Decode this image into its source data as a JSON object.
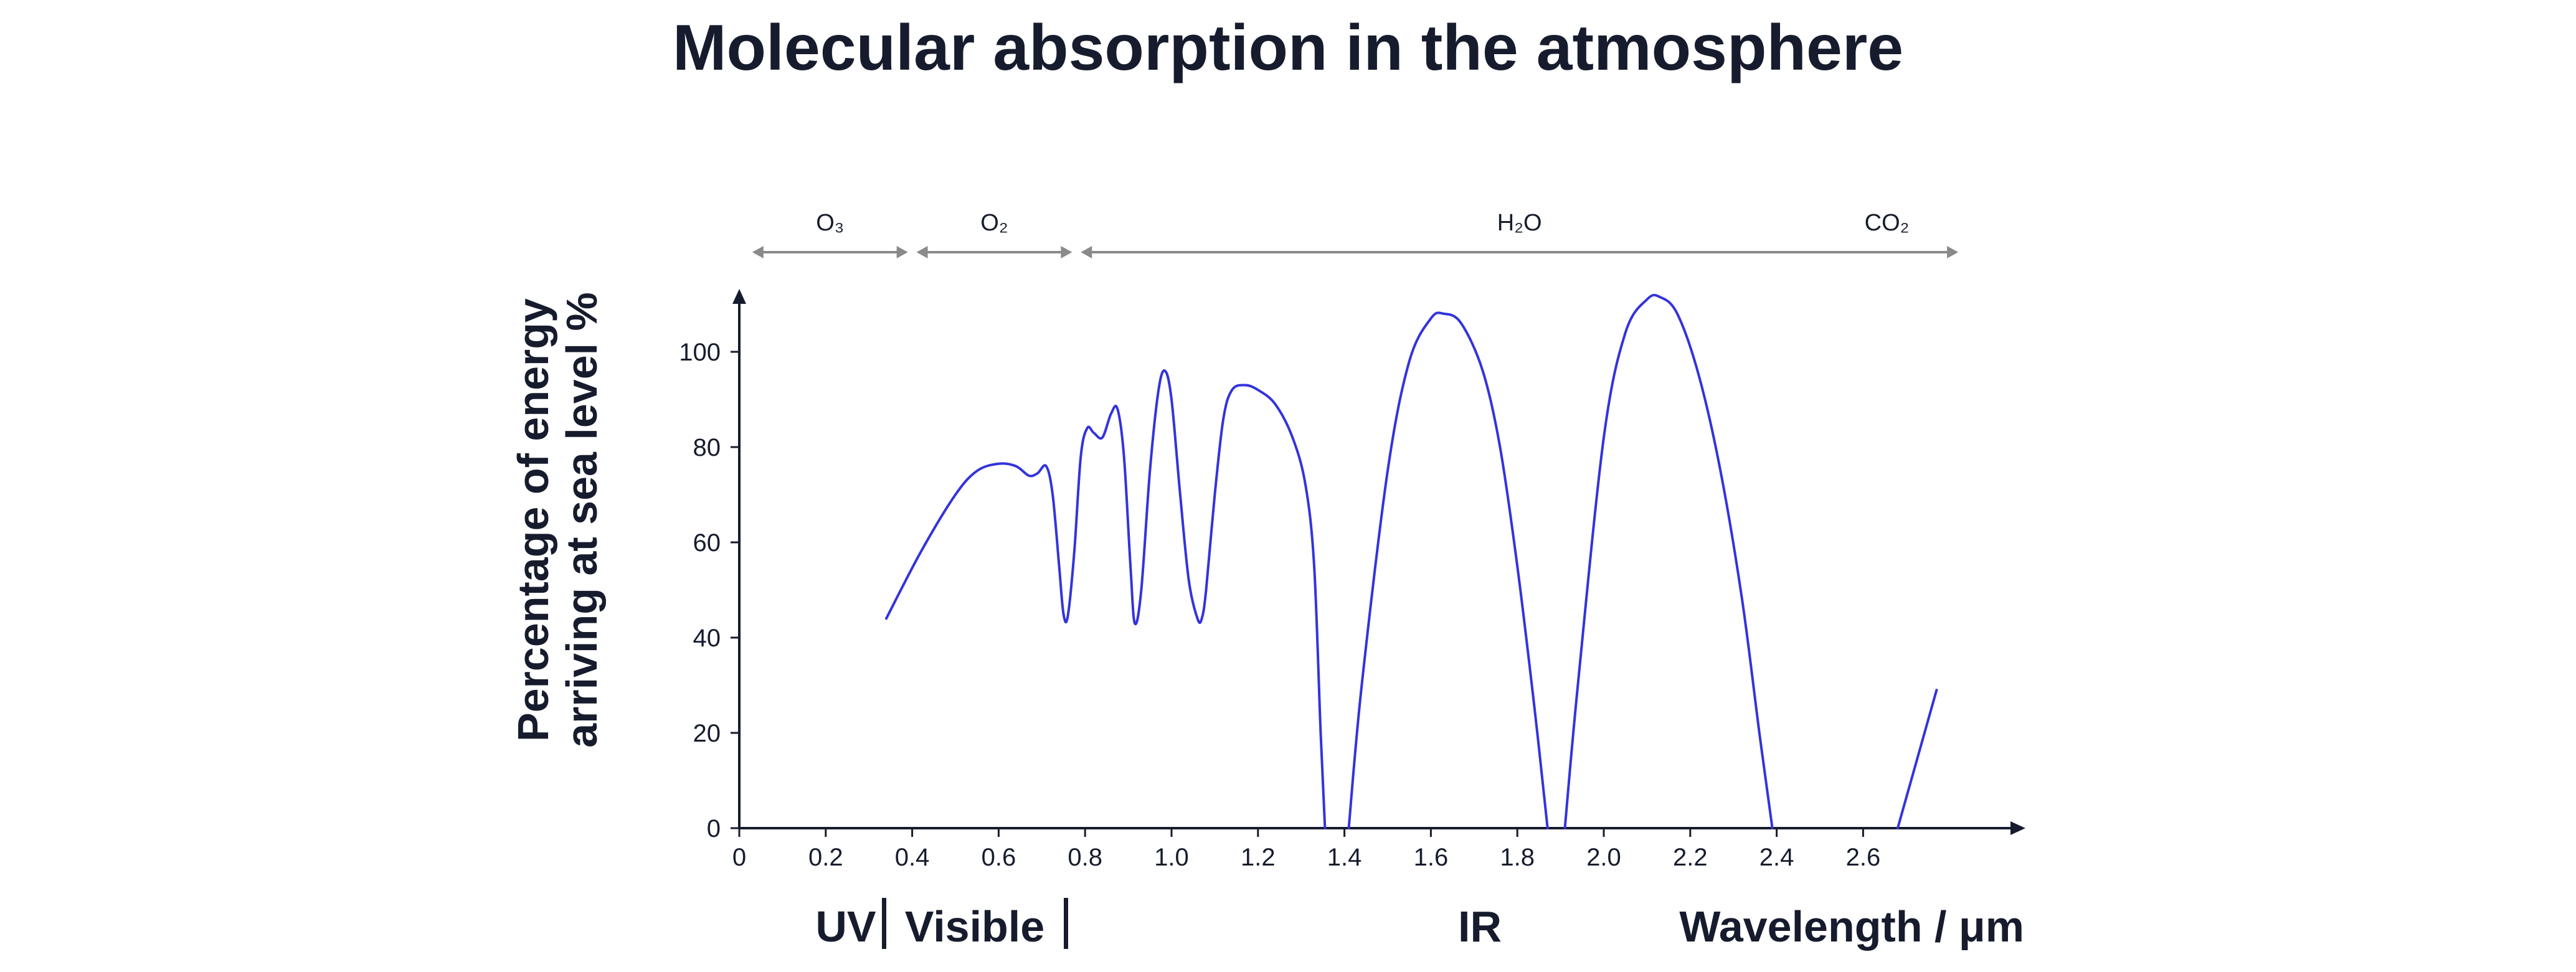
{
  "chart_data": {
    "type": "line",
    "title": "Molecular absorption in the atmosphere",
    "ylabel_line1": "Percentage of energy",
    "ylabel_line2": "arriving at sea level %",
    "xlabel": "Wavelength / μm",
    "xlim": [
      0,
      2.95
    ],
    "ylim": [
      0,
      112
    ],
    "x_ticks": [
      "0",
      "0.2",
      "0.4",
      "0.6",
      "0.8",
      "1.0",
      "1.2",
      "1.4",
      "1.6",
      "1.8",
      "2.0",
      "2.2",
      "2.4",
      "2.6"
    ],
    "y_ticks": [
      "0",
      "20",
      "40",
      "60",
      "80",
      "100"
    ],
    "grid": false,
    "line_color": "#3333dd",
    "regions": {
      "uv": "UV",
      "visible": "Visible",
      "ir": "IR"
    },
    "molecule_bands": [
      {
        "label": "O₃",
        "start": 0.03,
        "end": 0.39
      },
      {
        "label": "O₂",
        "start": 0.41,
        "end": 0.77
      },
      {
        "label": "H₂O",
        "start": 0.79,
        "end": 2.82
      },
      {
        "label": "CO₂",
        "start": 2.49,
        "end": 2.82
      }
    ],
    "series": [
      {
        "segments": [
          [
            [
              0.34,
              44
            ],
            [
              0.42,
              58
            ],
            [
              0.5,
              70
            ],
            [
              0.55,
              75
            ],
            [
              0.6,
              76.5
            ],
            [
              0.64,
              76
            ],
            [
              0.67,
              74
            ],
            [
              0.69,
              74.5
            ],
            [
              0.71,
              76
            ],
            [
              0.725,
              70
            ],
            [
              0.74,
              55
            ],
            [
              0.75,
              45
            ],
            [
              0.76,
              44.5
            ],
            [
              0.775,
              58
            ],
            [
              0.79,
              78
            ],
            [
              0.805,
              84
            ],
            [
              0.82,
              83
            ],
            [
              0.84,
              82
            ],
            [
              0.86,
              87
            ],
            [
              0.875,
              88
            ],
            [
              0.89,
              78
            ],
            [
              0.905,
              55
            ],
            [
              0.915,
              43
            ],
            [
              0.93,
              50
            ],
            [
              0.95,
              75
            ],
            [
              0.97,
              92
            ],
            [
              0.985,
              96
            ],
            [
              1.0,
              90
            ],
            [
              1.02,
              70
            ],
            [
              1.04,
              52
            ],
            [
              1.06,
              44
            ],
            [
              1.07,
              44
            ],
            [
              1.08,
              50
            ],
            [
              1.1,
              70
            ],
            [
              1.12,
              86
            ],
            [
              1.14,
              92
            ],
            [
              1.17,
              93
            ],
            [
              1.2,
              92
            ],
            [
              1.24,
              89
            ],
            [
              1.28,
              82
            ],
            [
              1.31,
              72
            ],
            [
              1.33,
              55
            ],
            [
              1.345,
              20
            ],
            [
              1.355,
              0
            ]
          ],
          [
            [
              1.41,
              0
            ],
            [
              1.44,
              30
            ],
            [
              1.5,
              75
            ],
            [
              1.55,
              98
            ],
            [
              1.6,
              107
            ],
            [
              1.63,
              108
            ],
            [
              1.67,
              106
            ],
            [
              1.72,
              96
            ],
            [
              1.76,
              80
            ],
            [
              1.8,
              55
            ],
            [
              1.84,
              25
            ],
            [
              1.87,
              0
            ]
          ],
          [
            [
              1.91,
              0
            ],
            [
              1.94,
              30
            ],
            [
              2.0,
              82
            ],
            [
              2.05,
              104
            ],
            [
              2.1,
              111
            ],
            [
              2.13,
              111.5
            ],
            [
              2.17,
              108
            ],
            [
              2.22,
              95
            ],
            [
              2.27,
              75
            ],
            [
              2.32,
              48
            ],
            [
              2.36,
              20
            ],
            [
              2.39,
              0
            ]
          ],
          [
            [
              2.68,
              0
            ],
            [
              2.77,
              29
            ]
          ]
        ]
      }
    ]
  }
}
